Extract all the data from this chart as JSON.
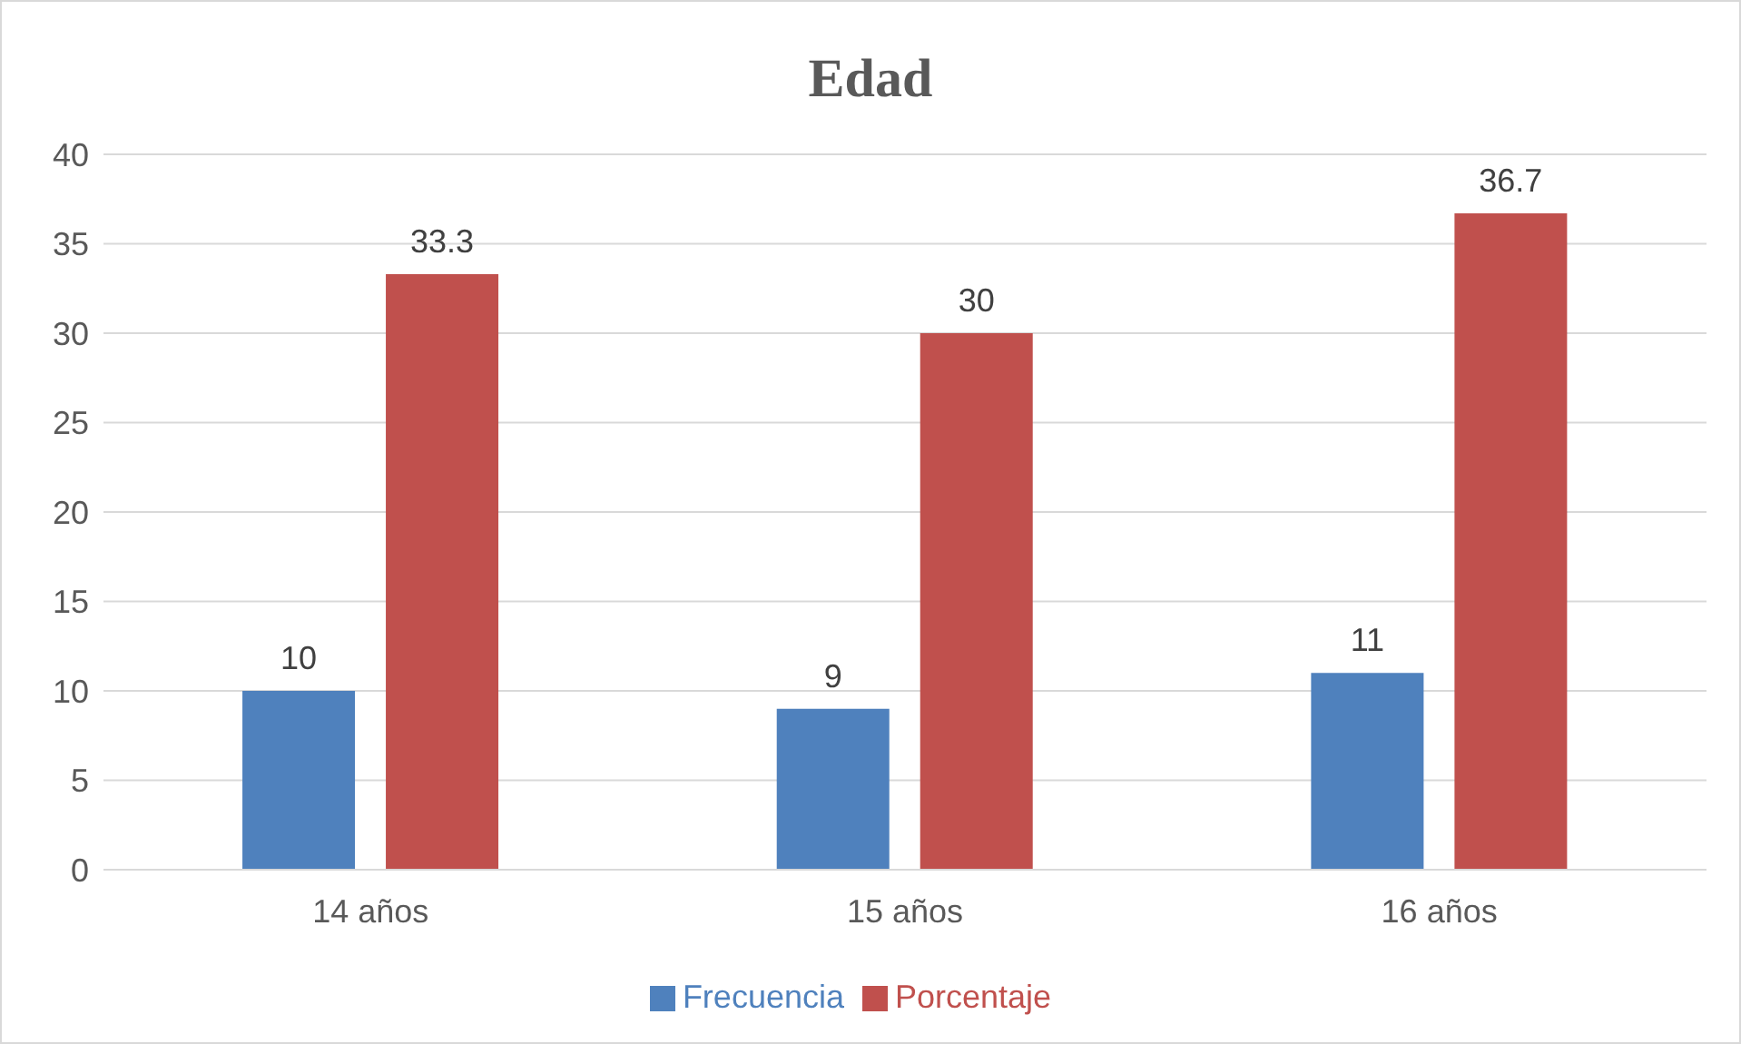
{
  "chart_data": {
    "type": "bar",
    "title": "Edad",
    "categories": [
      "14 años",
      "15 años",
      "16 años"
    ],
    "series": [
      {
        "name": "Frecuencia",
        "color": "#4f81bd",
        "values": [
          10,
          9,
          11
        ]
      },
      {
        "name": "Porcentaje",
        "color": "#c0504d",
        "values": [
          33.3,
          30,
          36.7
        ]
      }
    ],
    "ylim": [
      0,
      40
    ],
    "yticks": [
      0,
      5,
      10,
      15,
      20,
      25,
      30,
      35,
      40
    ],
    "grid": "y",
    "legend": "bottom",
    "data_labels": true
  }
}
